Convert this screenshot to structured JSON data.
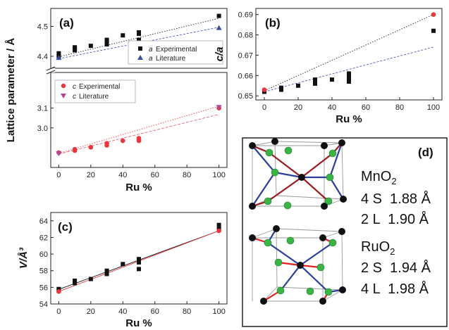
{
  "chart_data": [
    {
      "id": "a",
      "type": "scatter",
      "panel_label": "(a)",
      "xlabel": "Ru %",
      "ylabel": "Lattice parameter / Å",
      "xlim": [
        -5,
        105
      ],
      "xticks": [
        "0",
        "20",
        "40",
        "60",
        "80",
        "100"
      ],
      "upper": {
        "ylim": [
          4.36,
          4.56
        ],
        "yticks": [
          "4.4",
          "4.5"
        ],
        "series": [
          {
            "name": "a Experimental",
            "symbol": "a",
            "label": "Experimental",
            "marker": "square",
            "color": "#111111",
            "x": [
              0,
              0,
              10,
              10,
              10,
              20,
              30,
              30,
              30,
              40,
              50,
              50,
              50,
              100
            ],
            "y": [
              4.4,
              4.41,
              4.42,
              4.43,
              4.425,
              4.435,
              4.44,
              4.45,
              4.455,
              4.47,
              4.475,
              4.48,
              4.455,
              4.535
            ]
          },
          {
            "name": "a Literature",
            "symbol": "a",
            "label": "Literature",
            "marker": "triangle",
            "color": "#3b4fa0",
            "x": [
              0,
              100
            ],
            "y": [
              4.395,
              4.495
            ]
          }
        ],
        "fits": [
          {
            "color": "#222222",
            "dash": "1.5,2",
            "x": [
              0,
              100
            ],
            "y": [
              4.398,
              4.527
            ]
          },
          {
            "color": "#4b5bb5",
            "dash": "3,2",
            "x": [
              0,
              100
            ],
            "y": [
              4.392,
              4.497
            ]
          }
        ]
      },
      "lower": {
        "ylim": [
          2.8,
          3.28
        ],
        "yticks": [
          "3.0",
          "3.1"
        ],
        "visible_ticks": [
          3.0,
          3.1
        ],
        "series": [
          {
            "name": "c Experimental",
            "symbol": "c",
            "label": "Experimental",
            "marker": "circle",
            "color": "#e8383d",
            "x": [
              0,
              10,
              10,
              20,
              30,
              30,
              40,
              50,
              50,
              50,
              100
            ],
            "y": [
              2.875,
              2.885,
              2.892,
              2.902,
              2.912,
              2.922,
              2.935,
              2.948,
              2.94,
              2.935,
              3.1
            ]
          },
          {
            "name": "c Literature",
            "symbol": "c",
            "label": "Literature",
            "marker": "triangle-down",
            "color": "#b0479f",
            "x": [
              0,
              100
            ],
            "y": [
              2.871,
              3.105
            ]
          }
        ],
        "fits": [
          {
            "color": "#e8383d",
            "dash": "1.5,2",
            "x": [
              0,
              100
            ],
            "y": [
              2.871,
              3.11
            ]
          },
          {
            "color": "#e86478",
            "dash": "4,2",
            "x": [
              0,
              100
            ],
            "y": [
              2.868,
              3.068
            ]
          }
        ]
      }
    },
    {
      "id": "b",
      "type": "scatter",
      "panel_label": "(b)",
      "xlabel": "Ru %",
      "ylabel": "c/a",
      "xlim": [
        -5,
        105
      ],
      "ylim": [
        0.648,
        0.693
      ],
      "xticks": [
        "0",
        "20",
        "40",
        "60",
        "80",
        "100"
      ],
      "yticks": [
        "0.65",
        "0.66",
        "0.67",
        "0.68",
        "0.69"
      ],
      "series": [
        {
          "name": "Experimental",
          "marker": "square",
          "color": "#111111",
          "x": [
            0,
            10,
            10,
            20,
            30,
            30,
            30,
            40,
            50,
            50,
            50,
            50,
            100
          ],
          "y": [
            0.652,
            0.653,
            0.654,
            0.655,
            0.656,
            0.657,
            0.658,
            0.658,
            0.657,
            0.659,
            0.66,
            0.661,
            0.682
          ]
        },
        {
          "name": "Literature",
          "marker": "circle",
          "color": "#e8383d",
          "x": [
            0,
            100
          ],
          "y": [
            0.653,
            0.69
          ]
        }
      ],
      "fits": [
        {
          "color": "#222222",
          "dash": "1.5,2",
          "x": [
            0,
            100
          ],
          "y": [
            0.6525,
            0.69
          ]
        },
        {
          "color": "#4b5bb5",
          "dash": "3,2",
          "x": [
            0,
            100
          ],
          "y": [
            0.652,
            0.674
          ]
        }
      ]
    },
    {
      "id": "c",
      "type": "scatter",
      "panel_label": "(c)",
      "xlabel": "Ru %",
      "ylabel": "V/Å³",
      "xlim": [
        -5,
        105
      ],
      "ylim": [
        54,
        65
      ],
      "xticks": [
        "0",
        "20",
        "40",
        "60",
        "80",
        "100"
      ],
      "yticks": [
        "54",
        "56",
        "58",
        "60",
        "62",
        "64"
      ],
      "series": [
        {
          "name": "Experimental",
          "marker": "square",
          "color": "#111111",
          "x": [
            0,
            0,
            10,
            10,
            20,
            30,
            30,
            30,
            40,
            50,
            50,
            50,
            50,
            100,
            100
          ],
          "y": [
            55.6,
            55.8,
            56.5,
            56.8,
            57.0,
            57.6,
            57.8,
            58.0,
            58.8,
            59.0,
            59.3,
            59.4,
            58.2,
            63.0,
            63.5
          ]
        },
        {
          "name": "Literature",
          "marker": "circle",
          "color": "#e8383d",
          "x": [
            0,
            100
          ],
          "y": [
            55.5,
            62.8
          ]
        }
      ],
      "fits": [
        {
          "color": "#111111",
          "dash": "",
          "x": [
            0,
            100
          ],
          "y": [
            55.75,
            62.8
          ]
        },
        {
          "color": "#e8383d",
          "dash": "",
          "x": [
            0,
            100
          ],
          "y": [
            55.5,
            62.8
          ]
        }
      ]
    }
  ],
  "panel_d": {
    "label": "(d)",
    "structures": [
      {
        "formula": "MnO",
        "formula_sub": "2",
        "bonds": [
          {
            "text": "4 S  1.88 Å",
            "color": "#e02020"
          },
          {
            "text": "2 L  1.90 Å",
            "color": "#2a3fb0"
          }
        ]
      },
      {
        "formula": "RuO",
        "formula_sub": "2",
        "bonds": [
          {
            "text": "2 S  1.94 Å",
            "color": "#e02020"
          },
          {
            "text": "4 L  1.98 Å",
            "color": "#2a3fb0"
          }
        ]
      }
    ]
  }
}
